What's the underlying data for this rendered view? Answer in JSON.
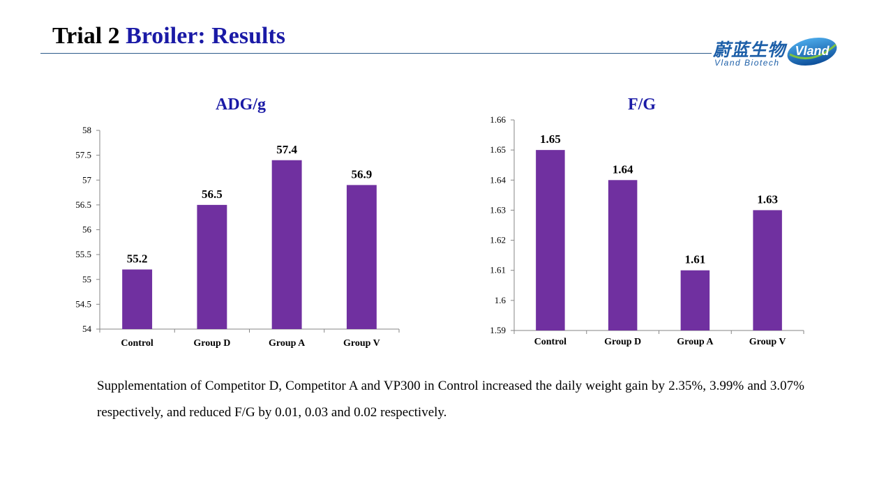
{
  "slide": {
    "title_part1": "Trial 2",
    "title_part2": "Broiler: Results",
    "title_colors": {
      "part1": "#000000",
      "part2": "#1a1aa6"
    }
  },
  "logo": {
    "name_cn": "蔚蓝生物",
    "name_en": "Vland  Biotech",
    "badge_text": "Vland"
  },
  "chart_data": [
    {
      "type": "bar",
      "title": "ADG/g",
      "categories": [
        "Control",
        "Group D",
        "Group A",
        "Group V"
      ],
      "values": [
        55.2,
        56.5,
        57.4,
        56.9
      ],
      "value_labels": [
        "55.2",
        "56.5",
        "57.4",
        "56.9"
      ],
      "ylim": [
        54,
        58
      ],
      "yticks": [
        54,
        54.5,
        55,
        55.5,
        56,
        56.5,
        57,
        57.5,
        58
      ],
      "ytick_labels": [
        "54",
        "54.5",
        "55",
        "55.5",
        "56",
        "56.5",
        "57",
        "57.5",
        "58"
      ],
      "xlabel": "",
      "ylabel": "",
      "grid": false,
      "legend": "none",
      "bar_color": "#7030a0"
    },
    {
      "type": "bar",
      "title": "F/G",
      "categories": [
        "Control",
        "Group D",
        "Group A",
        "Group V"
      ],
      "values": [
        1.65,
        1.64,
        1.61,
        1.63
      ],
      "value_labels": [
        "1.65",
        "1.64",
        "1.61",
        "1.63"
      ],
      "ylim": [
        1.59,
        1.66
      ],
      "yticks": [
        1.59,
        1.6,
        1.61,
        1.62,
        1.63,
        1.64,
        1.65,
        1.66
      ],
      "ytick_labels": [
        "1.59",
        "1.6",
        "1.61",
        "1.62",
        "1.63",
        "1.64",
        "1.65",
        "1.66"
      ],
      "xlabel": "",
      "ylabel": "",
      "grid": false,
      "legend": "none",
      "bar_color": "#7030a0"
    }
  ],
  "summary_text": "Supplementation of Competitor D, Competitor A and VP300 in Control increased the daily weight gain by 2.35%, 3.99% and 3.07% respectively, and reduced F/G by 0.01, 0.03 and 0.02 respectively."
}
